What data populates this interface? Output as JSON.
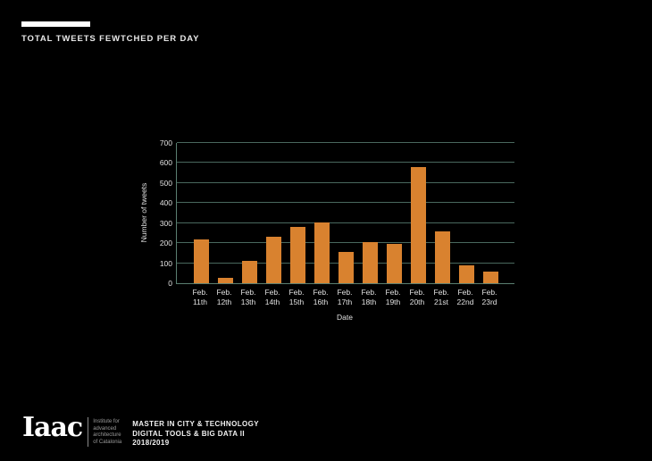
{
  "header": {
    "title": "TOTAL TWEETS FEWTCHED PER DAY"
  },
  "chart_data": {
    "type": "bar",
    "title": "",
    "xlabel": "Date",
    "ylabel": "Number of tweets",
    "categories": [
      "Feb. 11th",
      "Feb. 12th",
      "Feb. 13th",
      "Feb. 14th",
      "Feb. 15th",
      "Feb. 16th",
      "Feb. 17th",
      "Feb. 18th",
      "Feb. 19th",
      "Feb. 20th",
      "Feb. 21st",
      "Feb. 22nd",
      "Feb. 23rd"
    ],
    "values": [
      220,
      25,
      110,
      230,
      280,
      305,
      155,
      205,
      195,
      580,
      260,
      90,
      60
    ],
    "ylim": [
      0,
      700
    ],
    "yticks": [
      0,
      100,
      200,
      300,
      400,
      500,
      600,
      700
    ],
    "grid": true,
    "legend": false
  },
  "colors": {
    "background": "#000000",
    "bar": "#d9822f",
    "grid": "#49685e",
    "axis": "#5a7f71",
    "text": "#e0e0e0",
    "muted_text": "#9a9a9a",
    "accent_bar": "#ffffff"
  },
  "footer": {
    "logo": "Iaac",
    "institute_lines": [
      "Institute for",
      "advanced",
      "architecture",
      "of Catalonia"
    ],
    "program_lines": [
      "MASTER IN CITY & TECHNOLOGY",
      "DIGITAL TOOLS & BIG DATA II",
      "2018/2019"
    ]
  }
}
